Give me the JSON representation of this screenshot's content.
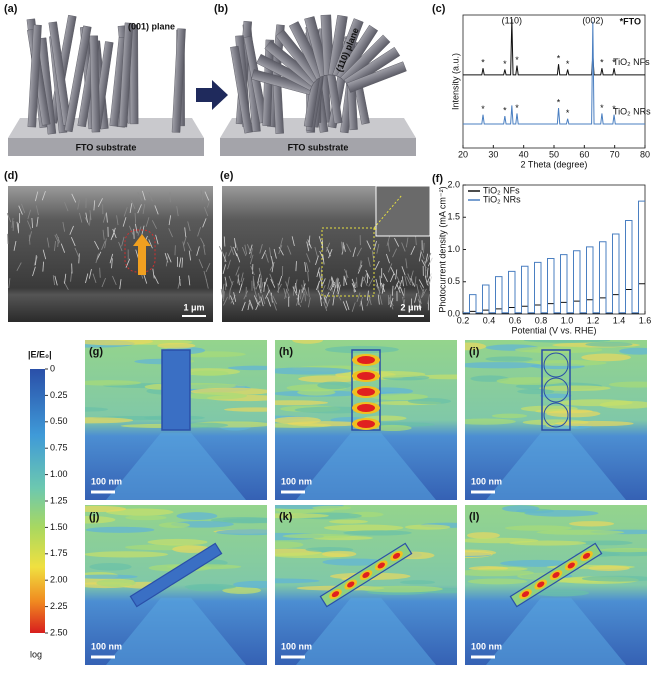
{
  "figure": {
    "a": {
      "label": "(a)",
      "plane": "(001) plane",
      "substrate": "FTO substrate"
    },
    "b": {
      "label": "(b)",
      "plane": "(110) plane",
      "substrate": "FTO substrate"
    },
    "d": {
      "label": "(d)",
      "scale_bar": "1 μm"
    },
    "e": {
      "label": "(e)",
      "scale_bar": "2 μm"
    },
    "g": {
      "label": "(g)",
      "scale_bar": "100 nm"
    },
    "h": {
      "label": "(h)",
      "scale_bar": "100 nm"
    },
    "i": {
      "label": "(i)",
      "scale_bar": "100 nm"
    },
    "j": {
      "label": "(j)",
      "scale_bar": "100 nm"
    },
    "k": {
      "label": "(k)",
      "scale_bar": "100 nm"
    },
    "l": {
      "label": "(l)",
      "scale_bar": "100 nm"
    },
    "colorbar": {
      "title": "|E/E₀|",
      "lim": [
        0,
        2.5
      ],
      "scale_label": "log",
      "ticks": [
        0,
        0.25,
        {
          "value": 0.5,
          "label": "0.50"
        },
        0.75,
        {
          "value": 1,
          "label": "1.00"
        },
        1.25,
        {
          "value": 1.5,
          "label": "1.50"
        },
        1.75,
        {
          "value": 2,
          "label": "2.00"
        },
        2.25,
        {
          "value": 2.5,
          "label": "2.50"
        }
      ]
    }
  },
  "chart_data": [
    {
      "type": "line",
      "label": "(c)",
      "xlabel": "2 Theta (degree)",
      "ylabel": "Intensity (a.u.)",
      "xlim": [
        20,
        80
      ],
      "xticks": [
        20,
        30,
        40,
        50,
        60,
        70,
        80
      ],
      "ylim": [
        0,
        100
      ],
      "legend": "inline",
      "legend_title": "*FTO",
      "fto_marker": "*",
      "fto_peaks": [
        26.6,
        33.8,
        37.8,
        51.5,
        54.5,
        65.8,
        69.8
      ],
      "annotations": [
        {
          "text": "(110)",
          "x": 36.1
        },
        {
          "text": "(002)",
          "x": 62.8
        }
      ],
      "x": [
        20,
        26.2,
        26.6,
        27.0,
        33.4,
        33.8,
        34.2,
        35.7,
        36.1,
        36.5,
        37.4,
        37.8,
        38.2,
        51.1,
        51.5,
        51.9,
        54.1,
        54.5,
        54.9,
        62.4,
        62.8,
        63.2,
        65.4,
        65.8,
        66.2,
        69.4,
        69.8,
        70.2,
        80
      ],
      "series": [
        {
          "name": "TiO₂ NFs",
          "color": "#111111",
          "values": [
            55,
            55,
            60,
            55,
            55,
            59,
            55,
            55,
            97,
            55,
            55,
            62,
            55,
            55,
            63,
            55,
            55,
            59,
            55,
            55,
            70,
            55,
            55,
            60,
            55,
            55,
            60,
            55,
            55
          ]
        },
        {
          "name": "TiO₂ NRs",
          "color": "#4a7fc1",
          "values": [
            18,
            18,
            25,
            18,
            18,
            24,
            18,
            18,
            32,
            18,
            18,
            26,
            18,
            18,
            30,
            18,
            18,
            22,
            18,
            18,
            95,
            18,
            18,
            26,
            18,
            18,
            25,
            18,
            18
          ]
        }
      ]
    },
    {
      "type": "line",
      "label": "(f)",
      "xlabel": "Potential (V vs. RHE)",
      "ylabel": "Photocurrent density (mA cm⁻²)",
      "xlim": [
        0.2,
        1.6
      ],
      "xticks": [
        0.2,
        0.4,
        0.6,
        0.8,
        {
          "value": 1,
          "label": "1.0"
        },
        1.2,
        1.4,
        1.6
      ],
      "ylim": [
        0,
        2
      ],
      "yticks": [
        {
          "value": 0,
          "label": "0.0"
        },
        0.5,
        {
          "value": 1,
          "label": "1.0"
        },
        1.5,
        {
          "value": 2,
          "label": "2.0"
        }
      ],
      "legend": "upper left",
      "x": [
        0.2,
        0.25,
        0.25,
        0.3,
        0.3,
        0.35,
        0.35,
        0.4,
        0.4,
        0.45,
        0.45,
        0.5,
        0.5,
        0.55,
        0.55,
        0.6,
        0.6,
        0.65,
        0.65,
        0.7,
        0.7,
        0.75,
        0.75,
        0.8,
        0.8,
        0.85,
        0.85,
        0.9,
        0.9,
        0.95,
        0.95,
        1.0,
        1.0,
        1.05,
        1.05,
        1.1,
        1.1,
        1.15,
        1.15,
        1.2,
        1.2,
        1.25,
        1.25,
        1.3,
        1.3,
        1.35,
        1.35,
        1.4,
        1.4,
        1.45,
        1.45,
        1.5,
        1.5,
        1.55,
        1.55,
        1.6
      ],
      "series": [
        {
          "name": "TiO₂ NFs",
          "color": "#111111",
          "values": [
            0.01,
            0.01,
            0.04,
            0.04,
            0.01,
            0.01,
            0.06,
            0.06,
            0.01,
            0.01,
            0.08,
            0.08,
            0.01,
            0.01,
            0.1,
            0.1,
            0.01,
            0.01,
            0.12,
            0.12,
            0.01,
            0.01,
            0.14,
            0.14,
            0.01,
            0.01,
            0.16,
            0.16,
            0.01,
            0.01,
            0.18,
            0.18,
            0.01,
            0.01,
            0.2,
            0.2,
            0.01,
            0.01,
            0.22,
            0.22,
            0.01,
            0.01,
            0.25,
            0.25,
            0.01,
            0.01,
            0.3,
            0.3,
            0.01,
            0.01,
            0.38,
            0.38,
            0.01,
            0.01,
            0.47,
            0.47
          ]
        },
        {
          "name": "TiO₂ NRs",
          "color": "#4a7fc1",
          "values": [
            0.02,
            0.02,
            0.3,
            0.3,
            0.02,
            0.02,
            0.45,
            0.45,
            0.02,
            0.02,
            0.58,
            0.58,
            0.02,
            0.02,
            0.66,
            0.66,
            0.02,
            0.02,
            0.74,
            0.74,
            0.02,
            0.02,
            0.8,
            0.8,
            0.02,
            0.02,
            0.86,
            0.86,
            0.02,
            0.02,
            0.92,
            0.92,
            0.02,
            0.02,
            0.98,
            0.98,
            0.02,
            0.02,
            1.04,
            1.04,
            0.02,
            0.02,
            1.12,
            1.12,
            0.02,
            0.02,
            1.24,
            1.24,
            0.02,
            0.02,
            1.45,
            1.45,
            0.02,
            0.02,
            1.75,
            1.75
          ]
        }
      ]
    }
  ]
}
